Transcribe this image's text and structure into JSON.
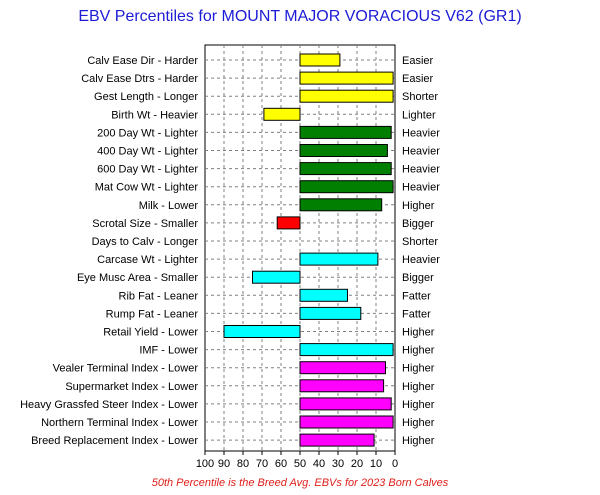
{
  "chart_data": {
    "type": "bar",
    "orientation": "horizontal",
    "title": "EBV Percentiles for MOUNT MAJOR VORACIOUS V62 (GR1)",
    "footnote": "50th Percentile is the Breed Avg. EBVs for 2023 Born Calves",
    "baseline": 50,
    "xlim": [
      100,
      0
    ],
    "x_ticks": [
      100,
      90,
      80,
      70,
      60,
      50,
      40,
      30,
      20,
      10,
      0
    ],
    "grid": true,
    "rows": [
      {
        "label": "Calv Ease Dir - Harder",
        "right_label": "Easier",
        "value": 29,
        "color": "#ffff00"
      },
      {
        "label": "Calv Ease Dtrs - Harder",
        "right_label": "Easier",
        "value": 1,
        "color": "#ffff00"
      },
      {
        "label": "Gest Length - Longer",
        "right_label": "Shorter",
        "value": 1,
        "color": "#ffff00"
      },
      {
        "label": "Birth Wt - Heavier",
        "right_label": "Lighter",
        "value": 69,
        "color": "#ffff00"
      },
      {
        "label": "200 Day Wt - Lighter",
        "right_label": "Heavier",
        "value": 2,
        "color": "#007f00"
      },
      {
        "label": "400 Day Wt - Lighter",
        "right_label": "Heavier",
        "value": 4,
        "color": "#007f00"
      },
      {
        "label": "600 Day Wt - Lighter",
        "right_label": "Heavier",
        "value": 2,
        "color": "#007f00"
      },
      {
        "label": "Mat Cow Wt - Lighter",
        "right_label": "Heavier",
        "value": 1,
        "color": "#007f00"
      },
      {
        "label": "Milk - Lower",
        "right_label": "Higher",
        "value": 7,
        "color": "#007f00"
      },
      {
        "label": "Scrotal Size - Smaller",
        "right_label": "Bigger",
        "value": 62,
        "color": "#ff0000"
      },
      {
        "label": "Days to Calv - Longer",
        "right_label": "Shorter",
        "value": null,
        "color": "#ffff00"
      },
      {
        "label": "Carcase Wt - Lighter",
        "right_label": "Heavier",
        "value": 9,
        "color": "#00ffff"
      },
      {
        "label": "Eye Musc Area - Smaller",
        "right_label": "Bigger",
        "value": 75,
        "color": "#00ffff"
      },
      {
        "label": "Rib Fat - Leaner",
        "right_label": "Fatter",
        "value": 25,
        "color": "#00ffff"
      },
      {
        "label": "Rump Fat - Leaner",
        "right_label": "Fatter",
        "value": 18,
        "color": "#00ffff"
      },
      {
        "label": "Retail Yield - Lower",
        "right_label": "Higher",
        "value": 90,
        "color": "#00ffff"
      },
      {
        "label": "IMF - Lower",
        "right_label": "Higher",
        "value": 1,
        "color": "#00ffff"
      },
      {
        "label": "Vealer Terminal Index - Lower",
        "right_label": "Higher",
        "value": 5,
        "color": "#ff00ff"
      },
      {
        "label": "Supermarket Index - Lower",
        "right_label": "Higher",
        "value": 6,
        "color": "#ff00ff"
      },
      {
        "label": "Heavy Grassfed Steer Index - Lower",
        "right_label": "Higher",
        "value": 2,
        "color": "#ff00ff"
      },
      {
        "label": "Northern Terminal Index - Lower",
        "right_label": "Higher",
        "value": 1,
        "color": "#ff00ff"
      },
      {
        "label": "Breed Replacement Index - Lower",
        "right_label": "Higher",
        "value": 11,
        "color": "#ff00ff"
      }
    ]
  }
}
